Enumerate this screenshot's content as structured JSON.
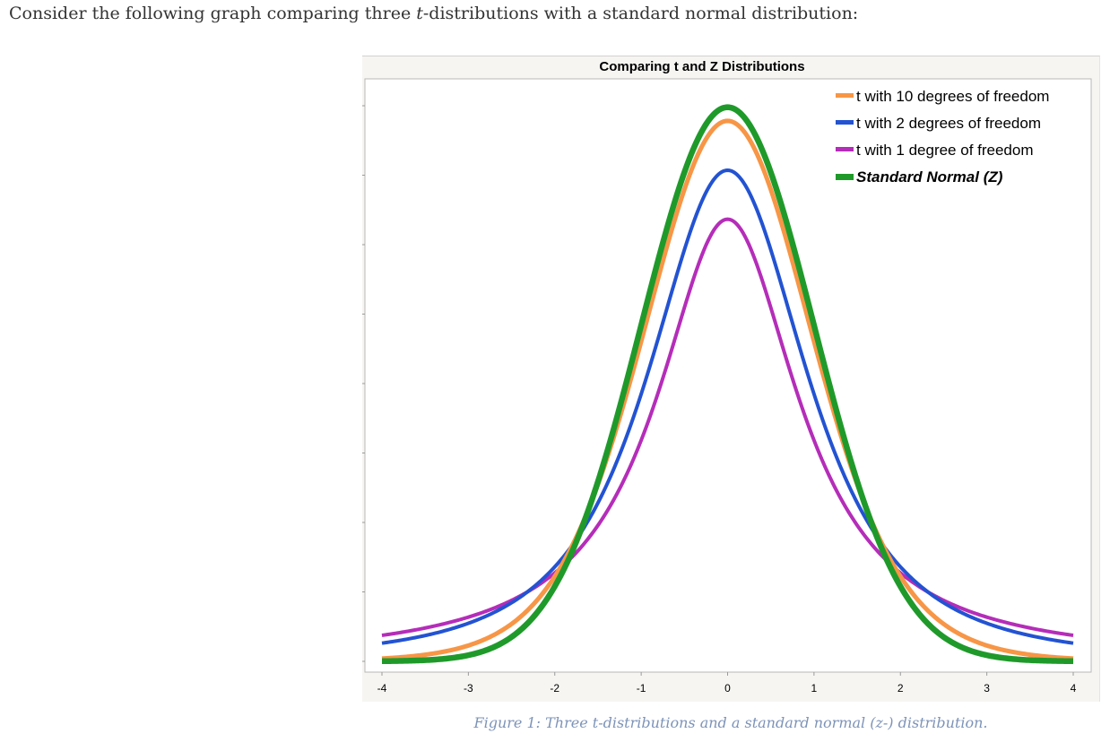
{
  "intro": {
    "before": "Consider the following graph comparing three ",
    "var": "t",
    "after": "-distributions with a standard normal distribution:"
  },
  "caption": "Figure 1: Three t-distributions and a standard normal (z-) distribution.",
  "colors": {
    "t10": "#f79646",
    "t2": "#2353d2",
    "t1": "#b52db9",
    "z": "#1f9a2a"
  },
  "chart_data": {
    "type": "line",
    "title": "Comparing t and Z Distributions",
    "xlabel": "",
    "ylabel": "",
    "xlim": [
      -4,
      4
    ],
    "ylim": [
      0,
      0.4
    ],
    "x_ticks": [
      "-4",
      "-3",
      "-2",
      "-1",
      "0",
      "1",
      "2",
      "3",
      "4"
    ],
    "y_tick_labels_shown": false,
    "legend_position": "top-right",
    "series": [
      {
        "name": "t with 10 degrees of freedom",
        "key": "t10",
        "df": 10,
        "color": "#f79646",
        "x": [
          -4,
          -3,
          -2,
          -1,
          0,
          1,
          2,
          3,
          4
        ],
        "y": [
          0.0025,
          0.0114,
          0.0611,
          0.2304,
          0.3891,
          0.2304,
          0.0611,
          0.0114,
          0.0025
        ]
      },
      {
        "name": "t with 2 degrees of freedom",
        "key": "t2",
        "df": 2,
        "color": "#2353d2",
        "x": [
          -4,
          -3,
          -2,
          -1,
          0,
          1,
          2,
          3,
          4
        ],
        "y": [
          0.0131,
          0.0274,
          0.068,
          0.1925,
          0.3536,
          0.1925,
          0.068,
          0.0274,
          0.0131
        ]
      },
      {
        "name": "t with 1 degree of freedom",
        "key": "t1",
        "df": 1,
        "color": "#b52db9",
        "x": [
          -4,
          -3,
          -2,
          -1,
          0,
          1,
          2,
          3,
          4
        ],
        "y": [
          0.0187,
          0.0318,
          0.0637,
          0.1592,
          0.3183,
          0.1592,
          0.0637,
          0.0318,
          0.0187
        ]
      },
      {
        "name": "Standard Normal (Z)",
        "key": "z",
        "df": null,
        "color": "#1f9a2a",
        "emphasis": "bold-italic",
        "x": [
          -4,
          -3,
          -2,
          -1,
          0,
          1,
          2,
          3,
          4
        ],
        "y": [
          0.0001,
          0.0044,
          0.054,
          0.242,
          0.3989,
          0.242,
          0.054,
          0.0044,
          0.0001
        ]
      }
    ]
  }
}
